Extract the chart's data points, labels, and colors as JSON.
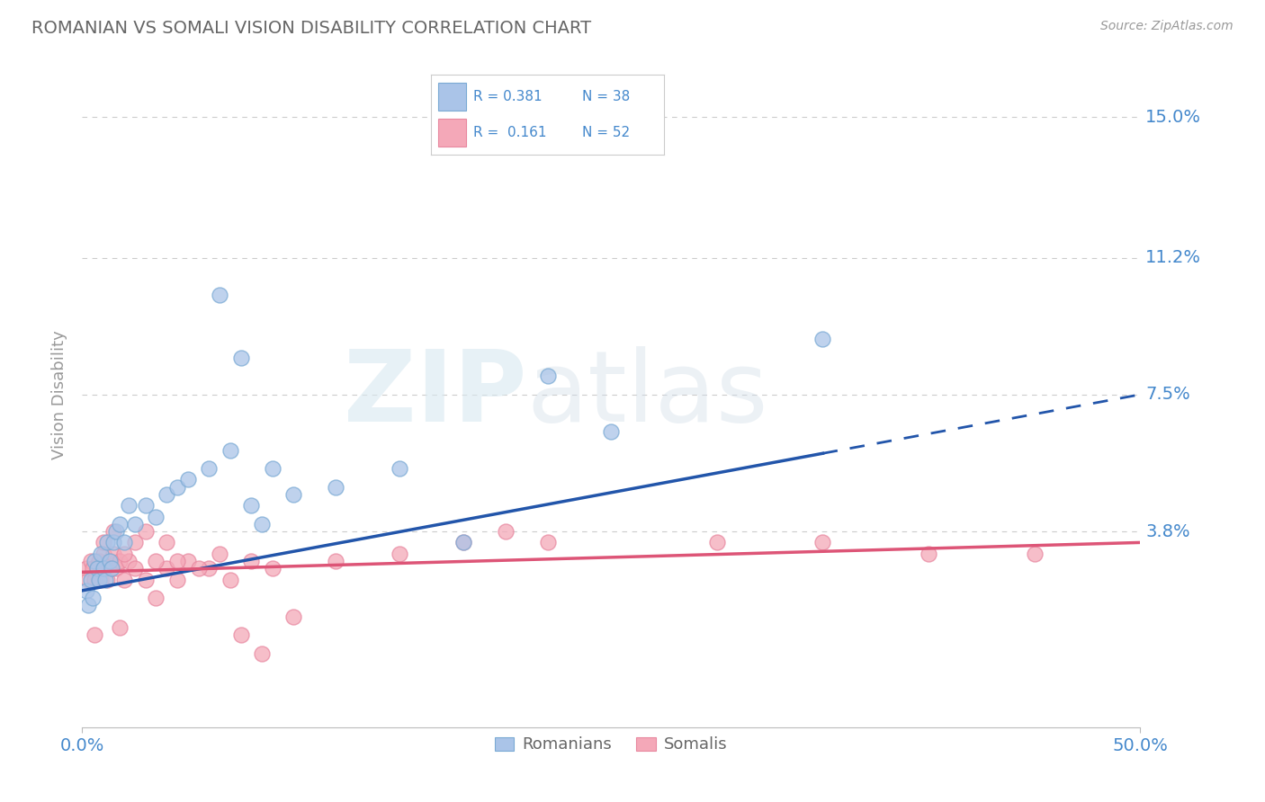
{
  "title": "ROMANIAN VS SOMALI VISION DISABILITY CORRELATION CHART",
  "source_text": "Source: ZipAtlas.com",
  "ylabel": "Vision Disability",
  "watermark_zip": "ZIP",
  "watermark_atlas": "atlas",
  "xlim": [
    0.0,
    50.0
  ],
  "ylim": [
    -1.5,
    16.5
  ],
  "ytick_vals": [
    0.0,
    3.8,
    7.5,
    11.2,
    15.0
  ],
  "ytick_labels": [
    "",
    "3.8%",
    "7.5%",
    "11.2%",
    "15.0%"
  ],
  "xtick_positions": [
    0.0,
    50.0
  ],
  "xtick_labels": [
    "0.0%",
    "50.0%"
  ],
  "legend_r_romanian": "0.381",
  "legend_n_romanian": "38",
  "legend_r_somali": "0.161",
  "legend_n_somali": "52",
  "romanian_fill": "#aac4e8",
  "romanian_edge": "#7aaad4",
  "somali_fill": "#f4a8b8",
  "somali_edge": "#e888a0",
  "trend_romanian_color": "#2255aa",
  "trend_somali_color": "#dd5577",
  "background_color": "#ffffff",
  "grid_color": "#cccccc",
  "title_color": "#666666",
  "right_label_color": "#4488cc",
  "legend_border_color": "#cccccc",
  "romanian_points_x": [
    0.2,
    0.3,
    0.4,
    0.5,
    0.6,
    0.7,
    0.8,
    0.9,
    1.0,
    1.1,
    1.2,
    1.3,
    1.4,
    1.5,
    1.6,
    1.8,
    2.0,
    2.2,
    2.5,
    3.0,
    3.5,
    4.0,
    4.5,
    5.0,
    6.0,
    7.0,
    8.0,
    9.0,
    10.0,
    12.0,
    15.0,
    18.0,
    25.0,
    35.0,
    6.5,
    7.5,
    8.5,
    22.0
  ],
  "romanian_points_y": [
    2.2,
    1.8,
    2.5,
    2.0,
    3.0,
    2.8,
    2.5,
    3.2,
    2.8,
    2.5,
    3.5,
    3.0,
    2.8,
    3.5,
    3.8,
    4.0,
    3.5,
    4.5,
    4.0,
    4.5,
    4.2,
    4.8,
    5.0,
    5.2,
    5.5,
    6.0,
    4.5,
    5.5,
    4.8,
    5.0,
    5.5,
    3.5,
    6.5,
    9.0,
    10.2,
    8.5,
    4.0,
    8.0
  ],
  "somali_points_x": [
    0.2,
    0.3,
    0.4,
    0.5,
    0.6,
    0.7,
    0.8,
    0.9,
    1.0,
    1.1,
    1.2,
    1.3,
    1.4,
    1.5,
    1.6,
    1.8,
    2.0,
    2.2,
    2.5,
    3.0,
    3.5,
    4.0,
    4.5,
    5.0,
    6.0,
    7.0,
    8.0,
    9.0,
    10.0,
    12.0,
    15.0,
    18.0,
    22.0,
    30.0,
    40.0,
    45.0,
    1.0,
    1.5,
    2.0,
    2.5,
    3.0,
    3.5,
    4.0,
    4.5,
    5.5,
    6.5,
    7.5,
    8.5,
    0.6,
    1.8,
    20.0,
    35.0
  ],
  "somali_points_y": [
    2.8,
    2.5,
    3.0,
    2.8,
    2.5,
    2.8,
    3.0,
    2.5,
    3.2,
    2.8,
    2.5,
    3.0,
    2.8,
    3.2,
    2.8,
    3.0,
    2.5,
    3.0,
    2.8,
    2.5,
    2.0,
    2.8,
    2.5,
    3.0,
    2.8,
    2.5,
    3.0,
    2.8,
    1.5,
    3.0,
    3.2,
    3.5,
    3.5,
    3.5,
    3.2,
    3.2,
    3.5,
    3.8,
    3.2,
    3.5,
    3.8,
    3.0,
    3.5,
    3.0,
    2.8,
    3.2,
    1.0,
    0.5,
    1.0,
    1.2,
    3.8,
    3.5
  ],
  "trend_romanian_solid_end": 35.0,
  "trend_romanian_start_y": 2.2,
  "trend_romanian_end_y": 7.5,
  "trend_somali_start_y": 2.7,
  "trend_somali_end_y": 3.5
}
